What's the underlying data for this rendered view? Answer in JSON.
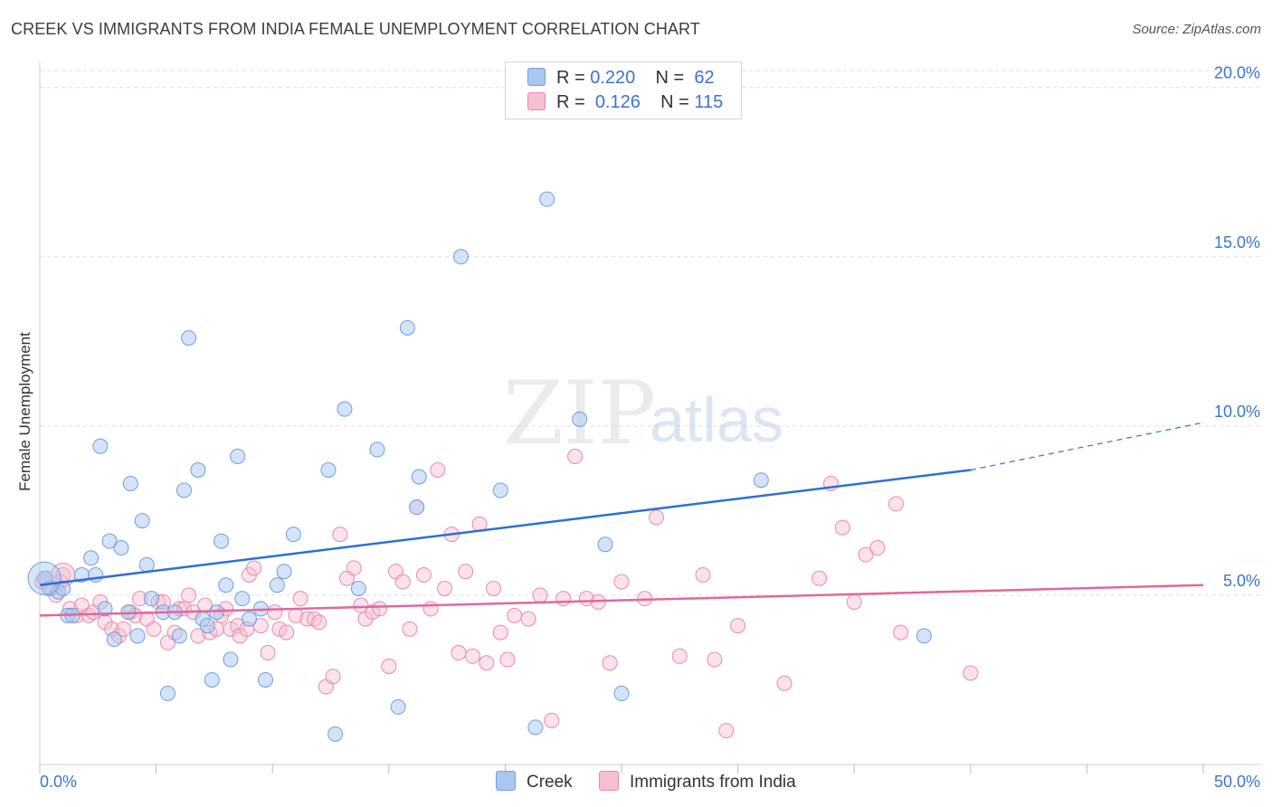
{
  "title": "CREEK VS IMMIGRANTS FROM INDIA FEMALE UNEMPLOYMENT CORRELATION CHART",
  "source": "Source: ZipAtlas.com",
  "watermark": {
    "zip": "ZIP",
    "atlas": "atlas"
  },
  "legend": {
    "r_label": "R =",
    "n_label": "N =",
    "series": [
      {
        "name": "Creek",
        "r": "0.220",
        "n": "62",
        "color": "#a9c8f0",
        "stroke": "#6f9fdc"
      },
      {
        "name": "Immigrants from India",
        "r": "0.126",
        "n": "115",
        "color": "#f7bfd2",
        "stroke": "#e889a9"
      }
    ]
  },
  "colors": {
    "blue_line": "#2f6fcf",
    "pink_line": "#e0689a",
    "tick_label": "#3a73d0",
    "grid": "#dddddd"
  },
  "chart_data": {
    "type": "scatter",
    "title": "CREEK VS IMMIGRANTS FROM INDIA FEMALE UNEMPLOYMENT CORRELATION CHART",
    "xlabel": "",
    "ylabel": "Female Unemployment",
    "xlim": [
      0,
      50
    ],
    "ylim": [
      0,
      20.5
    ],
    "x_tick_labels": [
      "0.0%",
      "50.0%"
    ],
    "y_ticks": [
      5,
      10,
      15,
      20
    ],
    "y_tick_labels": [
      "5.0%",
      "10.0%",
      "15.0%",
      "20.0%"
    ],
    "series": [
      {
        "name": "Creek",
        "trend": {
          "x": [
            0,
            40
          ],
          "y": [
            5.3,
            8.7
          ],
          "dashed_to": [
            50,
            10.1
          ]
        },
        "points": [
          [
            0.2,
            5.5
          ],
          [
            0.4,
            5.2
          ],
          [
            0.8,
            5.1
          ],
          [
            1.0,
            5.2
          ],
          [
            1.2,
            4.4
          ],
          [
            1.4,
            4.4
          ],
          [
            1.8,
            5.6
          ],
          [
            2.2,
            6.1
          ],
          [
            2.4,
            5.6
          ],
          [
            2.8,
            4.6
          ],
          [
            2.6,
            9.4
          ],
          [
            3.0,
            6.6
          ],
          [
            3.2,
            3.7
          ],
          [
            3.5,
            6.4
          ],
          [
            3.8,
            4.5
          ],
          [
            3.9,
            8.3
          ],
          [
            4.2,
            3.8
          ],
          [
            4.4,
            7.2
          ],
          [
            4.6,
            5.9
          ],
          [
            4.8,
            4.9
          ],
          [
            5.3,
            4.5
          ],
          [
            5.5,
            2.1
          ],
          [
            5.8,
            4.5
          ],
          [
            6.0,
            3.8
          ],
          [
            6.2,
            8.1
          ],
          [
            6.4,
            12.6
          ],
          [
            6.8,
            8.7
          ],
          [
            7.0,
            4.3
          ],
          [
            7.2,
            4.1
          ],
          [
            7.4,
            2.5
          ],
          [
            7.6,
            4.5
          ],
          [
            7.8,
            6.6
          ],
          [
            8.0,
            5.3
          ],
          [
            8.2,
            3.1
          ],
          [
            8.5,
            9.1
          ],
          [
            8.7,
            4.9
          ],
          [
            9.0,
            4.3
          ],
          [
            9.5,
            4.6
          ],
          [
            9.7,
            2.5
          ],
          [
            10.2,
            5.3
          ],
          [
            10.5,
            5.7
          ],
          [
            10.9,
            6.8
          ],
          [
            12.4,
            8.7
          ],
          [
            12.7,
            0.9
          ],
          [
            13.1,
            10.5
          ],
          [
            13.7,
            5.2
          ],
          [
            14.5,
            9.3
          ],
          [
            15.4,
            1.7
          ],
          [
            15.8,
            12.9
          ],
          [
            16.2,
            7.6
          ],
          [
            16.3,
            8.5
          ],
          [
            18.1,
            15.0
          ],
          [
            19.8,
            8.1
          ],
          [
            21.3,
            1.1
          ],
          [
            21.8,
            16.7
          ],
          [
            23.2,
            10.2
          ],
          [
            24.3,
            6.5
          ],
          [
            25.0,
            2.1
          ],
          [
            31.0,
            8.4
          ],
          [
            38.0,
            3.8
          ]
        ]
      },
      {
        "name": "Immigrants from India",
        "trend": {
          "x": [
            0,
            50
          ],
          "y": [
            4.4,
            5.3
          ]
        },
        "points": [
          [
            0.1,
            5.4
          ],
          [
            0.3,
            5.5
          ],
          [
            0.5,
            5.2
          ],
          [
            0.7,
            5.0
          ],
          [
            0.9,
            5.4
          ],
          [
            1.0,
            5.6
          ],
          [
            1.3,
            4.6
          ],
          [
            1.6,
            4.4
          ],
          [
            1.8,
            4.7
          ],
          [
            2.1,
            4.4
          ],
          [
            2.3,
            4.5
          ],
          [
            2.6,
            4.8
          ],
          [
            2.8,
            4.2
          ],
          [
            3.1,
            4.0
          ],
          [
            3.4,
            3.8
          ],
          [
            3.6,
            4.0
          ],
          [
            3.9,
            4.5
          ],
          [
            4.1,
            4.4
          ],
          [
            4.3,
            4.9
          ],
          [
            4.6,
            4.3
          ],
          [
            4.9,
            4.0
          ],
          [
            5.1,
            4.8
          ],
          [
            5.3,
            4.8
          ],
          [
            5.5,
            3.6
          ],
          [
            5.8,
            3.9
          ],
          [
            6.0,
            4.6
          ],
          [
            6.2,
            4.6
          ],
          [
            6.4,
            5.0
          ],
          [
            6.6,
            4.5
          ],
          [
            6.8,
            3.8
          ],
          [
            7.1,
            4.7
          ],
          [
            7.3,
            3.9
          ],
          [
            7.6,
            4.0
          ],
          [
            7.8,
            4.4
          ],
          [
            8.0,
            4.6
          ],
          [
            8.2,
            4.0
          ],
          [
            8.5,
            4.1
          ],
          [
            8.6,
            3.8
          ],
          [
            8.9,
            4.0
          ],
          [
            9.0,
            5.6
          ],
          [
            9.2,
            5.8
          ],
          [
            9.5,
            4.1
          ],
          [
            9.8,
            3.3
          ],
          [
            10.1,
            4.5
          ],
          [
            10.3,
            4.0
          ],
          [
            10.6,
            3.9
          ],
          [
            11.0,
            4.4
          ],
          [
            11.2,
            4.9
          ],
          [
            11.5,
            4.3
          ],
          [
            11.8,
            4.3
          ],
          [
            12.0,
            4.2
          ],
          [
            12.3,
            2.3
          ],
          [
            12.6,
            2.6
          ],
          [
            12.9,
            6.8
          ],
          [
            13.2,
            5.5
          ],
          [
            13.5,
            5.8
          ],
          [
            13.8,
            4.7
          ],
          [
            14.0,
            4.3
          ],
          [
            14.3,
            4.5
          ],
          [
            14.6,
            4.6
          ],
          [
            15.0,
            2.9
          ],
          [
            15.3,
            5.7
          ],
          [
            15.6,
            5.4
          ],
          [
            15.9,
            4.0
          ],
          [
            16.2,
            7.6
          ],
          [
            16.5,
            5.6
          ],
          [
            16.8,
            4.6
          ],
          [
            17.1,
            8.7
          ],
          [
            17.4,
            5.2
          ],
          [
            17.7,
            6.8
          ],
          [
            18.0,
            3.3
          ],
          [
            18.3,
            5.7
          ],
          [
            18.6,
            3.2
          ],
          [
            18.9,
            7.1
          ],
          [
            19.2,
            3.0
          ],
          [
            19.5,
            5.2
          ],
          [
            19.8,
            3.9
          ],
          [
            20.1,
            3.1
          ],
          [
            20.4,
            4.4
          ],
          [
            21.0,
            4.3
          ],
          [
            21.5,
            5.0
          ],
          [
            22.0,
            1.3
          ],
          [
            22.5,
            4.9
          ],
          [
            23.0,
            9.1
          ],
          [
            23.5,
            4.9
          ],
          [
            24.0,
            4.8
          ],
          [
            24.5,
            3.0
          ],
          [
            25.0,
            5.4
          ],
          [
            26.0,
            4.9
          ],
          [
            26.5,
            7.3
          ],
          [
            27.5,
            3.2
          ],
          [
            28.5,
            5.6
          ],
          [
            29.5,
            1.0
          ],
          [
            29.0,
            3.1
          ],
          [
            30.0,
            4.1
          ],
          [
            32.0,
            2.4
          ],
          [
            33.5,
            5.5
          ],
          [
            34.0,
            8.3
          ],
          [
            34.5,
            7.0
          ],
          [
            35.0,
            4.8
          ],
          [
            35.5,
            6.2
          ],
          [
            36.0,
            6.4
          ],
          [
            36.8,
            7.7
          ],
          [
            37.0,
            3.9
          ],
          [
            40.0,
            2.7
          ]
        ]
      }
    ]
  }
}
